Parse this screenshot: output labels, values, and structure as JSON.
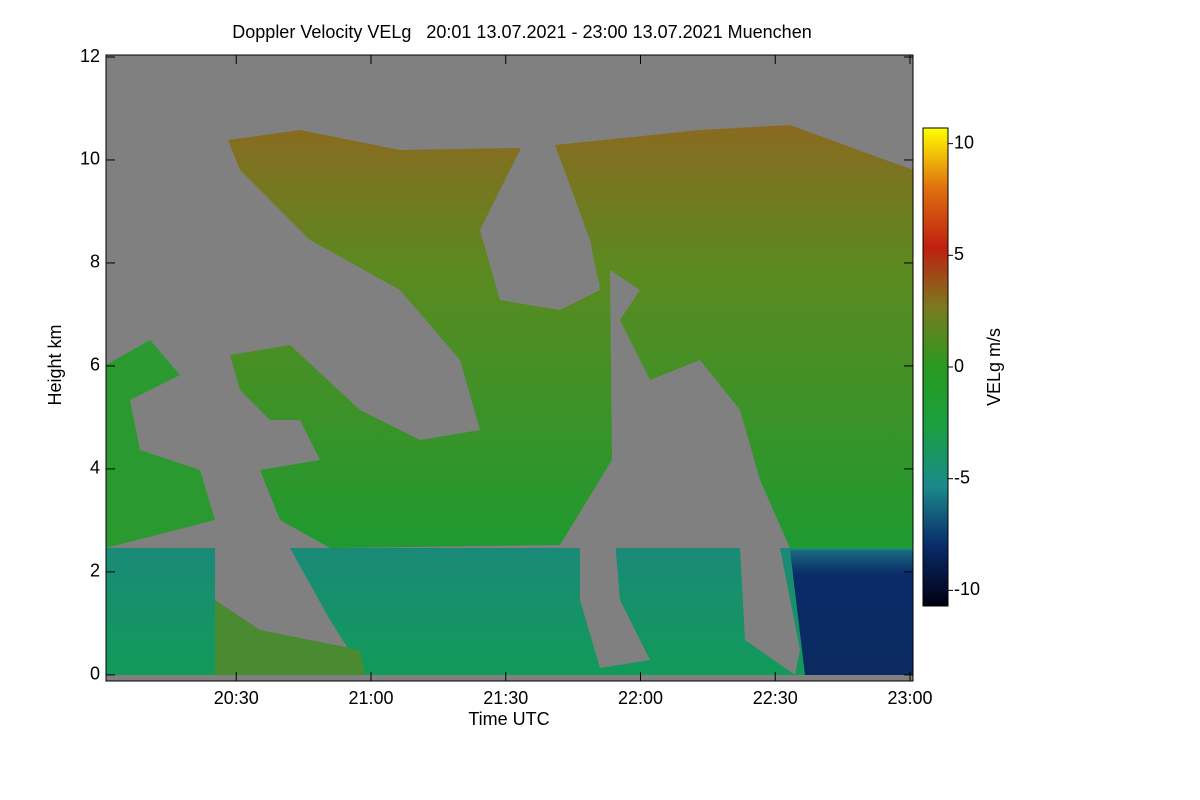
{
  "chart_data": {
    "type": "heatmap",
    "title": "Doppler Velocity VELg   20:01 13.07.2021 - 23:00 13.07.2021 Muenchen",
    "x_label": "Time UTC",
    "y_label": "Height km",
    "xlim": [
      "20:01",
      "23:00"
    ],
    "xticks": [
      "20:30",
      "21:00",
      "21:30",
      "22:00",
      "22:30",
      "23:00"
    ],
    "ylim": [
      -0.1,
      12
    ],
    "yticks": [
      0,
      2,
      4,
      6,
      8,
      10,
      12
    ],
    "colorbar": {
      "label": "VELg m/s",
      "zlim": [
        -10.7,
        10.7
      ],
      "ticks": [
        10,
        5,
        0,
        -5,
        -10
      ],
      "colormap": [
        "#000010",
        "#0a2a6a",
        "#1a8a8a",
        "#19a040",
        "#2a9a20",
        "#7a7a20",
        "#c02010",
        "#e07010",
        "#ffff00"
      ]
    }
  }
}
